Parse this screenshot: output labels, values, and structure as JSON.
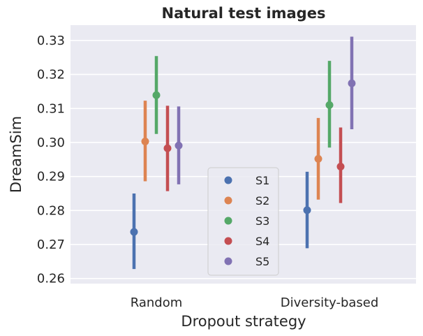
{
  "chart_data": {
    "type": "point",
    "title": "Natural test images",
    "xlabel": "Dropout strategy",
    "ylabel": "DreamSim",
    "categories": [
      "Random",
      "Diversity-based"
    ],
    "ylim": [
      0.2585,
      0.3345
    ],
    "yticks": [
      0.26,
      0.27,
      0.28,
      0.29,
      0.3,
      0.31,
      0.32,
      0.33
    ],
    "ytick_labels": [
      "0.26",
      "0.27",
      "0.28",
      "0.29",
      "0.30",
      "0.31",
      "0.32",
      "0.33"
    ],
    "grid": true,
    "legend_position": "bottom-center",
    "series": [
      {
        "name": "S1",
        "color": "#4c72b0",
        "values": [
          0.2737,
          0.2801
        ],
        "ci_low": [
          0.2628,
          0.2689
        ],
        "ci_high": [
          0.285,
          0.2914
        ]
      },
      {
        "name": "S2",
        "color": "#dd8452",
        "values": [
          0.3003,
          0.2952
        ],
        "ci_low": [
          0.2886,
          0.2832
        ],
        "ci_high": [
          0.3123,
          0.3072
        ]
      },
      {
        "name": "S3",
        "color": "#55a868",
        "values": [
          0.3139,
          0.311
        ],
        "ci_low": [
          0.3025,
          0.2985
        ],
        "ci_high": [
          0.3254,
          0.324
        ]
      },
      {
        "name": "S4",
        "color": "#c44e52",
        "values": [
          0.2983,
          0.2929
        ],
        "ci_low": [
          0.2857,
          0.2822
        ],
        "ci_high": [
          0.3108,
          0.3044
        ]
      },
      {
        "name": "S5",
        "color": "#8172b3",
        "values": [
          0.2991,
          0.3174
        ],
        "ci_low": [
          0.2877,
          0.3039
        ],
        "ci_high": [
          0.3106,
          0.3311
        ]
      }
    ]
  }
}
